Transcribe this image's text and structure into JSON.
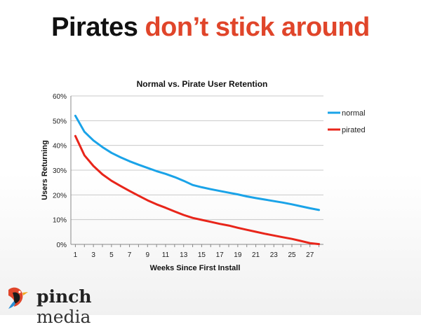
{
  "slide": {
    "title_part1": "Pirates",
    "title_part2": "don’t stick around",
    "title_colors": {
      "dark": "#111111",
      "accent": "#e0452a"
    }
  },
  "chart_data": {
    "type": "line",
    "title": "Normal vs. Pirate User Retention",
    "xlabel": "Weeks Since First Install",
    "ylabel": "Users Returning",
    "x": [
      1,
      2,
      3,
      4,
      5,
      6,
      7,
      8,
      9,
      10,
      11,
      12,
      13,
      14,
      15,
      16,
      17,
      18,
      19,
      20,
      21,
      22,
      23,
      24,
      25,
      26,
      27,
      28
    ],
    "x_tick_labels": [
      "1",
      "3",
      "5",
      "7",
      "9",
      "11",
      "13",
      "15",
      "17",
      "19",
      "21",
      "23",
      "25",
      "27"
    ],
    "y_tick_labels": [
      "0%",
      "10%",
      "20%",
      "30%",
      "40%",
      "50%",
      "60%"
    ],
    "xlim": [
      0.5,
      28.5
    ],
    "ylim": [
      0,
      60
    ],
    "grid": true,
    "legend_position": "right",
    "series": [
      {
        "name": "normal",
        "color": "#1aa3e8",
        "values": [
          52,
          45.5,
          42,
          39.3,
          37,
          35.2,
          33.6,
          32.2,
          30.9,
          29.6,
          28.5,
          27.2,
          25.7,
          24,
          23.1,
          22.3,
          21.6,
          20.9,
          20.2,
          19.4,
          18.7,
          18.1,
          17.5,
          16.9,
          16.2,
          15.4,
          14.6,
          13.9
        ]
      },
      {
        "name": "pirated",
        "color": "#e8251a",
        "values": [
          43.8,
          36,
          31.7,
          28.3,
          25.7,
          23.6,
          21.6,
          19.7,
          17.8,
          16.2,
          14.8,
          13.3,
          11.9,
          10.7,
          9.9,
          9.1,
          8.3,
          7.6,
          6.7,
          5.9,
          5.1,
          4.3,
          3.6,
          2.9,
          2.2,
          1.4,
          0.5,
          0.1
        ]
      }
    ]
  },
  "logo": {
    "text_bold": "pinch",
    "text_regular": " media"
  }
}
